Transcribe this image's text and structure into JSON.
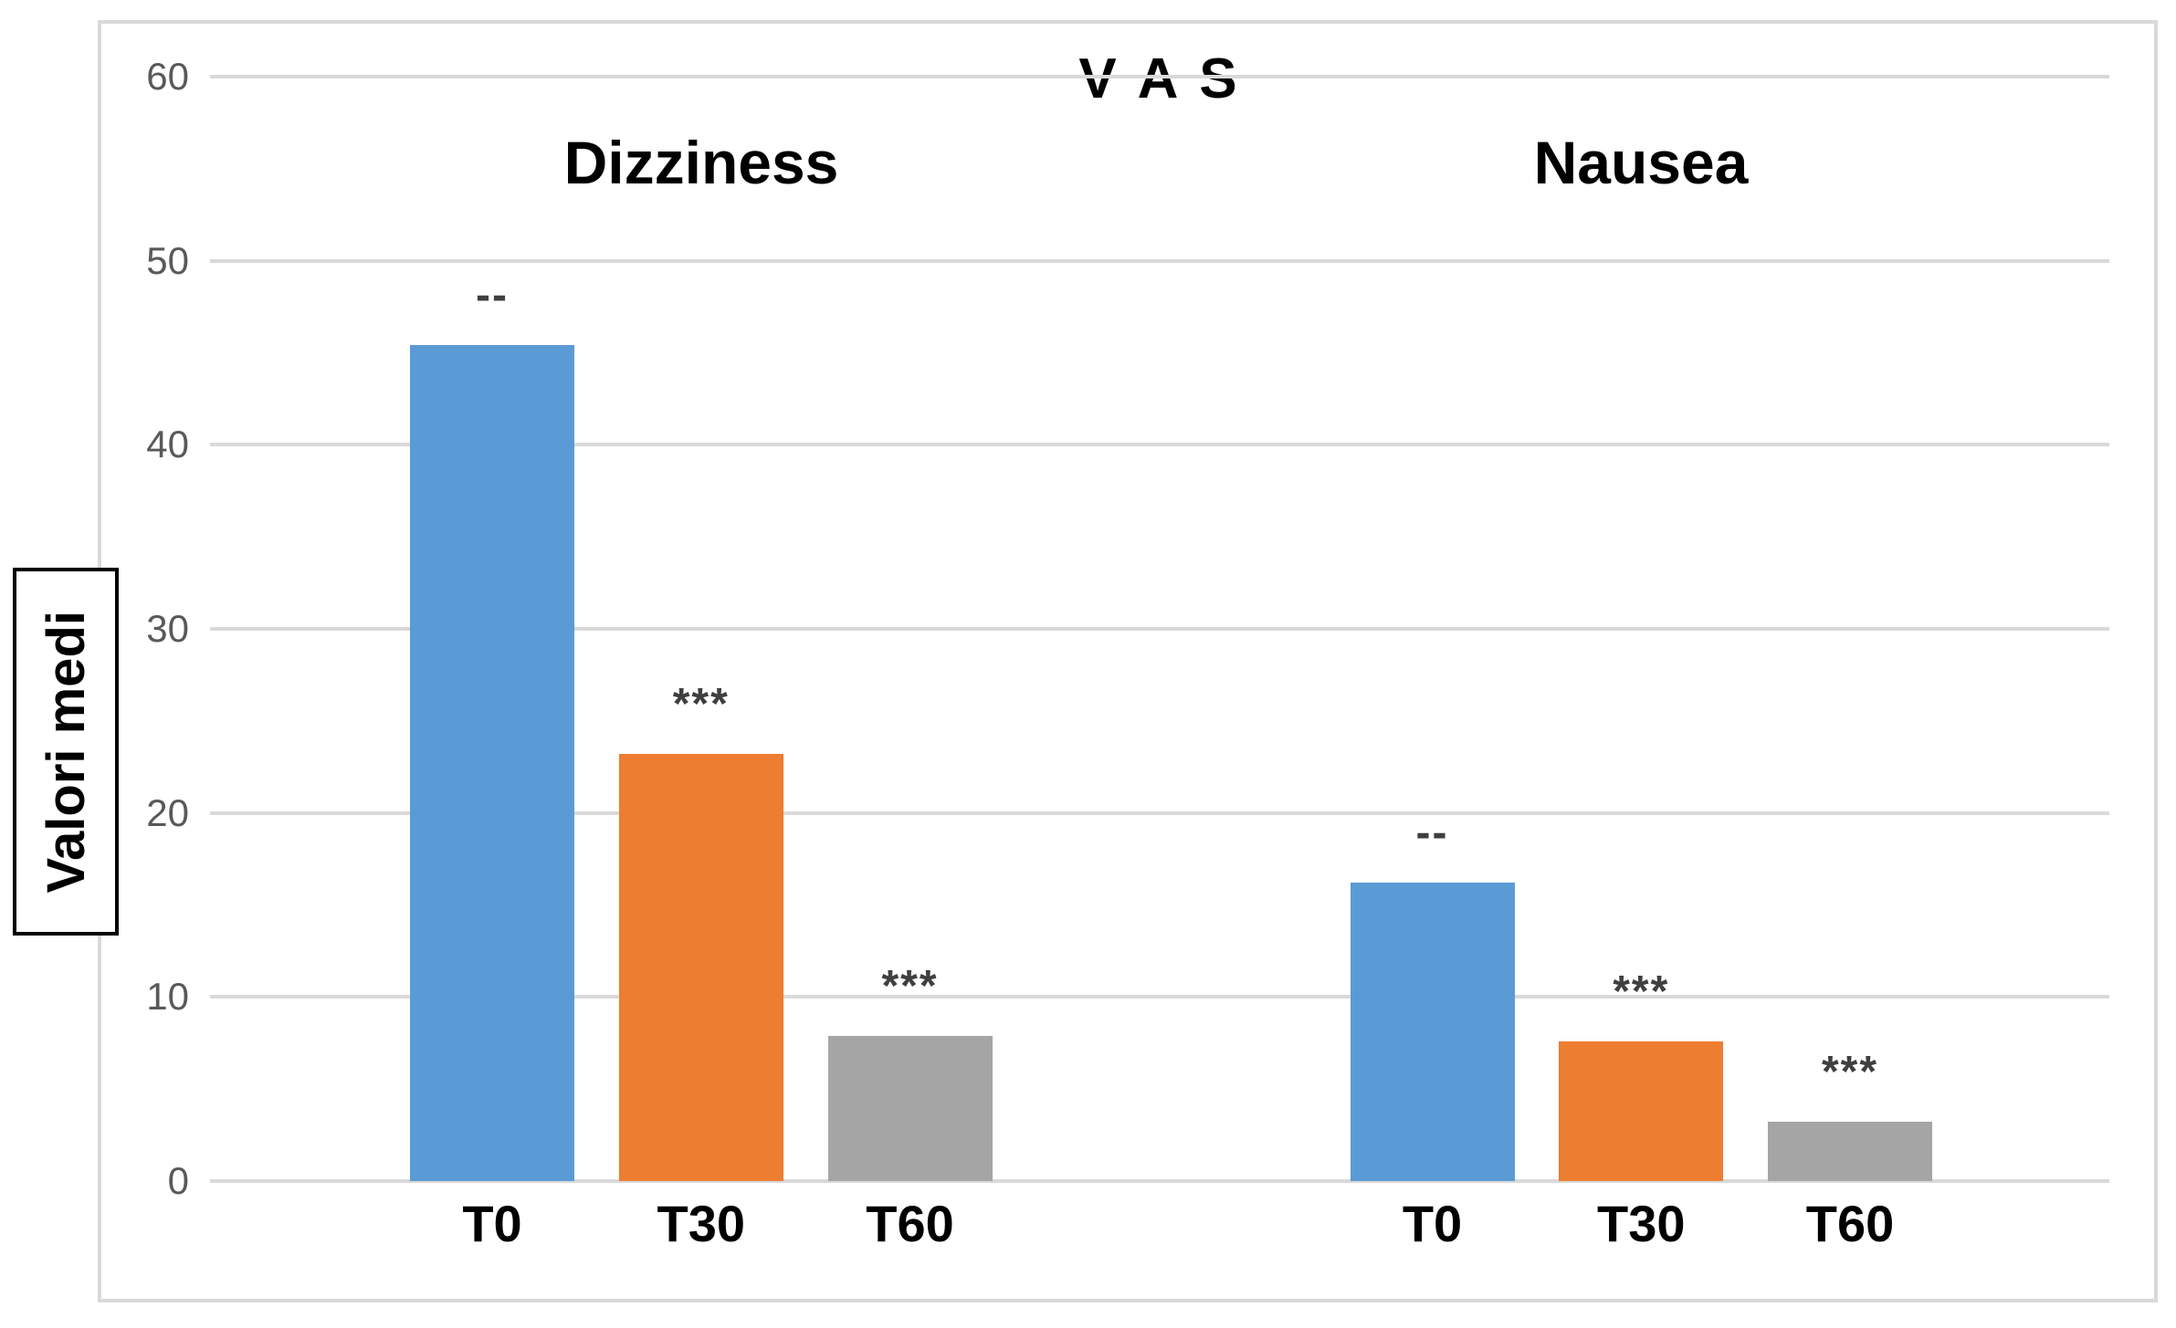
{
  "chart_data": {
    "type": "bar",
    "title": "V A S",
    "xlabel": "",
    "ylabel": "Valori medi",
    "ylim": [
      0,
      60
    ],
    "yticks": [
      0,
      10,
      20,
      30,
      40,
      50,
      60
    ],
    "grid": true,
    "legend": false,
    "groups": [
      "Dizziness",
      "Nausea"
    ],
    "categories": [
      "T0",
      "T30",
      "T60"
    ],
    "series": [
      {
        "name": "Dizziness",
        "values": [
          45.4,
          23.2,
          7.9
        ],
        "annotations": [
          "--",
          "***",
          "***"
        ]
      },
      {
        "name": "Nausea",
        "values": [
          16.2,
          7.6,
          3.2
        ],
        "annotations": [
          "--",
          "***",
          "***"
        ]
      }
    ],
    "bar_colors": [
      "#5B9BD5",
      "#ED7D31",
      "#A5A5A5"
    ],
    "colors": {
      "gridline": "#D9D9D9",
      "frame_border": "#D9D9D9",
      "tick_text": "#595959",
      "annotation_text": "#3F3F3F",
      "label_text": "#000000"
    }
  }
}
